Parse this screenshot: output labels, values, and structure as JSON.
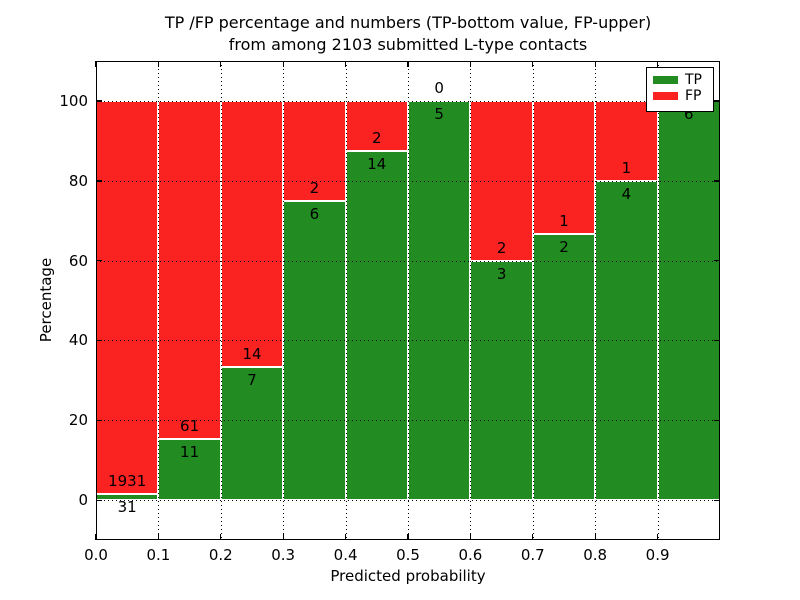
{
  "chart_data": {
    "type": "bar",
    "stacked": true,
    "title_line1": "TP /FP percentage and numbers (TP-bottom value, FP-upper)",
    "title_line2": "from among 2103 submitted L-type contacts",
    "xlabel": "Predicted probability",
    "ylabel": "Percentage",
    "total_contacts": 2103,
    "xlim": [
      0.0,
      1.0
    ],
    "ylim": [
      -10,
      110
    ],
    "grid": true,
    "x_ticks": [
      0.0,
      0.1,
      0.2,
      0.3,
      0.4,
      0.5,
      0.6,
      0.7,
      0.8,
      0.9
    ],
    "x_tick_labels": [
      "0.0",
      "0.1",
      "0.2",
      "0.3",
      "0.4",
      "0.5",
      "0.6",
      "0.7",
      "0.8",
      "0.9"
    ],
    "y_ticks": [
      0,
      20,
      40,
      60,
      80,
      100
    ],
    "y_tick_labels": [
      "0",
      "20",
      "40",
      "60",
      "80",
      "100"
    ],
    "colors": {
      "tp": "#228b22",
      "fp": "#fb2222"
    },
    "legend": {
      "position": "upper right",
      "entries": [
        {
          "label": "TP",
          "color": "#228b22"
        },
        {
          "label": "FP",
          "color": "#fb2222"
        }
      ]
    },
    "bins": [
      {
        "range": [
          0.0,
          0.1
        ],
        "tp": 31,
        "fp": 1931,
        "tp_percent": 1.58
      },
      {
        "range": [
          0.1,
          0.2
        ],
        "tp": 11,
        "fp": 61,
        "tp_percent": 15.28
      },
      {
        "range": [
          0.2,
          0.3
        ],
        "tp": 7,
        "fp": 14,
        "tp_percent": 33.33
      },
      {
        "range": [
          0.3,
          0.4
        ],
        "tp": 6,
        "fp": 2,
        "tp_percent": 75.0
      },
      {
        "range": [
          0.4,
          0.5
        ],
        "tp": 14,
        "fp": 2,
        "tp_percent": 87.5
      },
      {
        "range": [
          0.5,
          0.6
        ],
        "tp": 5,
        "fp": 0,
        "tp_percent": 100.0
      },
      {
        "range": [
          0.6,
          0.7
        ],
        "tp": 3,
        "fp": 2,
        "tp_percent": 60.0
      },
      {
        "range": [
          0.7,
          0.8
        ],
        "tp": 2,
        "fp": 1,
        "tp_percent": 66.67
      },
      {
        "range": [
          0.8,
          0.9
        ],
        "tp": 4,
        "fp": 1,
        "tp_percent": 80.0
      },
      {
        "range": [
          0.9,
          1.0
        ],
        "tp": 6,
        "fp": 0,
        "tp_percent": 100.0
      }
    ]
  }
}
